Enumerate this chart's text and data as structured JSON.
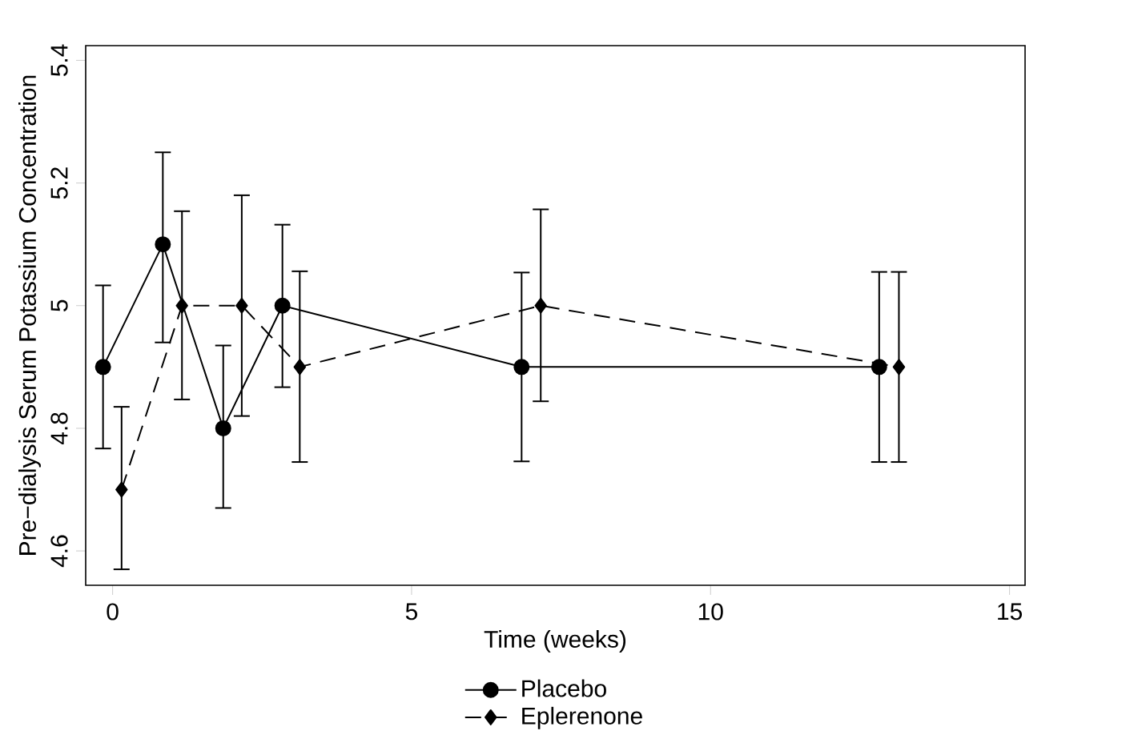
{
  "chart_data": {
    "type": "line",
    "xlabel": "Time (weeks)",
    "ylabel": "Pre−dialysis Serum Potassium Concentration",
    "xlim": [
      -0.45,
      15.26
    ],
    "ylim": [
      4.544,
      5.424
    ],
    "xticks": [
      0,
      5,
      10,
      15
    ],
    "yticks": [
      4.6,
      4.8,
      5,
      5.2,
      5.4
    ],
    "grid": false,
    "legend": "bottom",
    "series": [
      {
        "name": "Placebo",
        "color": "#000000",
        "marker": "circle",
        "line_style": "solid",
        "x": [
          -0.16,
          0.84,
          1.85,
          2.84,
          6.84,
          12.82
        ],
        "values": [
          4.9,
          5.1,
          4.8,
          5.0,
          4.9,
          4.9
        ],
        "errors": [
          [
            4.767,
            5.033
          ],
          [
            4.94,
            5.25
          ],
          [
            4.67,
            4.935
          ],
          [
            4.867,
            5.132
          ],
          [
            4.746,
            5.054
          ],
          [
            4.745,
            5.055
          ]
        ]
      },
      {
        "name": "Eplerenone",
        "color": "#000000",
        "marker": "diamond",
        "line_style": "dashed",
        "x": [
          0.15,
          1.16,
          2.16,
          3.13,
          7.16,
          13.15
        ],
        "values": [
          4.7,
          5.0,
          5.0,
          4.9,
          5.0,
          4.9
        ],
        "errors": [
          [
            4.57,
            4.835
          ],
          [
            4.847,
            5.154
          ],
          [
            4.82,
            5.18
          ],
          [
            4.745,
            5.056
          ],
          [
            4.844,
            5.157
          ],
          [
            4.745,
            5.055
          ]
        ]
      }
    ]
  }
}
